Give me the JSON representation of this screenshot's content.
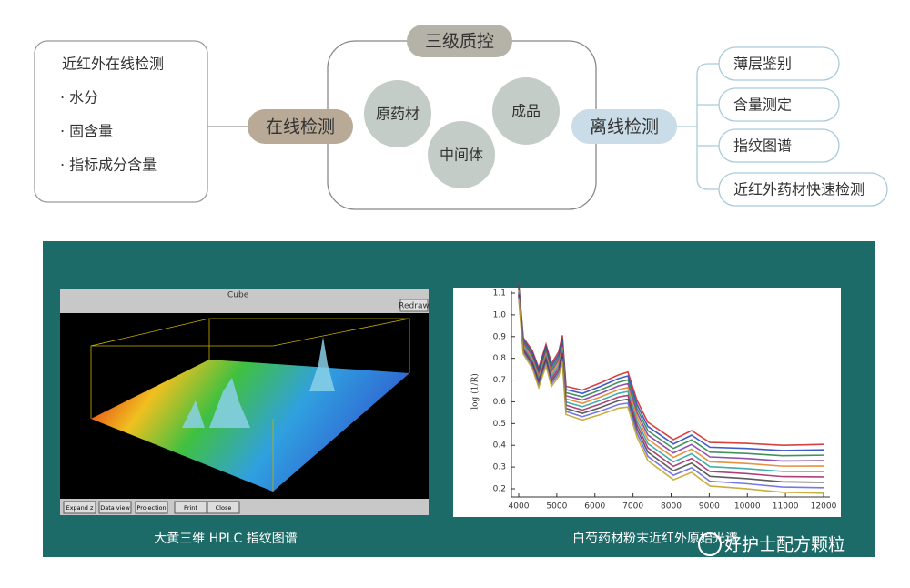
{
  "header": {
    "title": "三级质控"
  },
  "online": {
    "tag": "在线检测",
    "box": [
      "近红外在线检测",
      "· 水分",
      "· 固含量",
      "· 指标成分含量"
    ]
  },
  "stages": [
    "原药材",
    "中间体",
    "成品"
  ],
  "offline": {
    "tag": "离线检测",
    "items": [
      "薄层鉴别",
      "含量测定",
      "指纹图谱",
      "近红外药材快速检测"
    ]
  },
  "hplc_image": {
    "caption": "大黄三维 HPLC 指纹图谱",
    "buttons": [
      "Expand z",
      "Data view",
      "Projection",
      "Print",
      "Close"
    ],
    "redraw": "Redraw",
    "cube": "Cube"
  },
  "nir_image": {
    "caption": "白芍药材粉末近红外原始光谱",
    "ylabel": "log (1/R)",
    "yticks": [
      "1.1",
      "1.0",
      "0.9",
      "0.8",
      "0.7",
      "0.6",
      "0.5",
      "0.4",
      "0.3",
      "0.2"
    ],
    "xticks": [
      "4000",
      "5000",
      "6000",
      "7000",
      "8000",
      "9000",
      "10000",
      "11000",
      "12000"
    ]
  },
  "watermark": "好护士配方颗粒"
}
